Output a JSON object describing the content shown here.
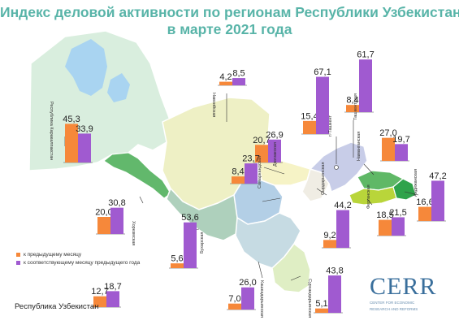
{
  "title": {
    "line1": "Индекс деловой активности по регионам Республики Узбекистан",
    "line2": "в марте 2021 года"
  },
  "colors": {
    "prev_month": "#f6883a",
    "prev_year_month": "#a05ad0",
    "title": "#58b4a8"
  },
  "legend": {
    "prev_month": "к предыдущему месяцу",
    "prev_year_month": "к соответствующему месяцу предыдущего года"
  },
  "chart_data": {
    "type": "bar",
    "series": [
      {
        "name": "к предыдущему месяцу"
      },
      {
        "name": "к соответствующему месяцу предыдущего года"
      }
    ],
    "regions": [
      {
        "key": "karakalpakstan",
        "label": "Республика Каракалпакстан",
        "values": [
          45.3,
          33.9
        ]
      },
      {
        "key": "navoiy",
        "label": "Навоийская",
        "values": [
          4.2,
          8.5
        ]
      },
      {
        "key": "tashkent_city",
        "label": "г. Ташкент",
        "values": [
          15.4,
          67.1
        ]
      },
      {
        "key": "tashkent_reg",
        "label": "Ташкентская",
        "values": [
          8.4,
          61.7
        ]
      },
      {
        "key": "namangan",
        "label": "Наманганская",
        "values": [
          27.0,
          19.7
        ]
      },
      {
        "key": "andijan",
        "label": "Андижанская",
        "values": [
          16.6,
          47.2
        ]
      },
      {
        "key": "fergana",
        "label": "Ферганская",
        "values": [
          18.5,
          21.5
        ]
      },
      {
        "key": "sirdarya",
        "label": "Сырдарьинская",
        "values": [
          9.2,
          44.2
        ]
      },
      {
        "key": "jizzakh",
        "label": "Джизакская",
        "values": [
          20.7,
          26.9
        ]
      },
      {
        "key": "samarkand",
        "label": "Самаркандская",
        "values": [
          8.4,
          23.7
        ]
      },
      {
        "key": "khorezm",
        "label": "Хорезмская",
        "values": [
          20.0,
          30.8
        ]
      },
      {
        "key": "bukhara",
        "label": "Бухарская",
        "values": [
          5.6,
          53.6
        ]
      },
      {
        "key": "kashkadarya",
        "label": "Кашкадарьинская",
        "values": [
          7.0,
          26.0
        ]
      },
      {
        "key": "surkhandarya",
        "label": "Сурхандарьинская",
        "values": [
          5.1,
          43.8
        ]
      },
      {
        "key": "national",
        "label": "Республика Узбекистан",
        "values": [
          12.7,
          18.7
        ]
      }
    ]
  },
  "logo": {
    "text": "CERR",
    "subtitle_line1": "CENTER FOR ECONOMIC",
    "subtitle_line2": "RESEARCH AND REFORMS"
  }
}
